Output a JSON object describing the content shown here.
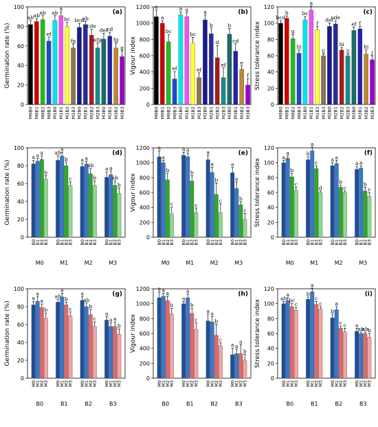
{
  "figure": {
    "colors": {
      "palette14": [
        "#000000",
        "#cc0000",
        "#66dd44",
        "#1f49cc",
        "#00e5ee",
        "#ee55ee",
        "#ffff33",
        "#8b7355",
        "#1a1a8c",
        "#7a1a1a",
        "#8c1a1a",
        "#1a7a7a",
        "#1a1acc",
        "#9900cc"
      ],
      "blue": [
        "#1f4e99",
        "#3a78c8",
        "#86b6e8",
        "#cfe2f7"
      ],
      "green": [
        "#0b7a0b",
        "#2ea82e",
        "#8fd88f",
        "#cfeecf"
      ],
      "red": [
        "#c23b3b",
        "#e06a6a",
        "#f2a5a5",
        "#fad3d3"
      ]
    }
  },
  "chart_data": [
    {
      "panel": "(a)",
      "type": "bar",
      "ylabel": "Germination rate (%)",
      "ylim": [
        0,
        100
      ],
      "yticks": [
        0,
        20,
        40,
        60,
        80,
        100
      ],
      "categories": [
        "M0B0",
        "M0B1",
        "M0B2",
        "M0B3",
        "M1B0",
        "M1B1",
        "M1B2",
        "M1B3",
        "M2B0",
        "M2B1",
        "M2B2",
        "M2B3",
        "M3B0",
        "M3B1",
        "M3B2",
        "M3B3"
      ],
      "values": [
        82,
        85,
        87,
        65,
        86,
        91,
        80,
        58,
        79,
        82,
        71,
        58,
        67,
        70,
        58,
        49
      ],
      "errors": [
        4,
        3,
        4,
        4,
        5,
        4,
        4,
        4,
        4,
        3,
        6,
        5,
        6,
        4,
        5,
        6
      ],
      "letters": [
        "ab",
        "ab",
        "ab",
        "ef",
        "ab",
        "a",
        "bc",
        "fg",
        "bcd",
        "ab",
        "cde",
        "efg",
        "def",
        "cd",
        "fg",
        "g"
      ],
      "color_scheme": "palette16"
    },
    {
      "panel": "(b)",
      "type": "bar",
      "ylabel": "Vigour index",
      "ylim": [
        0,
        1200
      ],
      "yticks": [
        0,
        200,
        400,
        600,
        800,
        1000,
        1200
      ],
      "categories": [
        "M0B0",
        "M0B1",
        "M0B2",
        "M0B3",
        "M1B0",
        "M1B1",
        "M1B2",
        "M1B3",
        "M2B0",
        "M2B1",
        "M2B2",
        "M2B3",
        "M3B0",
        "M3B1",
        "M3B2",
        "M3B3"
      ],
      "values": [
        1080,
        1000,
        770,
        315,
        1100,
        1080,
        755,
        330,
        1040,
        870,
        575,
        330,
        865,
        655,
        435,
        240
      ],
      "errors": [
        80,
        30,
        90,
        90,
        40,
        50,
        70,
        60,
        60,
        70,
        150,
        120,
        70,
        90,
        40,
        80
      ],
      "letters": [
        "a",
        "a",
        "bc",
        "ef",
        "a",
        "a",
        "bc",
        "ef",
        "a",
        "b",
        "d",
        "ef",
        "b",
        "cd",
        "e",
        "f"
      ],
      "color_scheme": "palette16"
    },
    {
      "panel": "(c)",
      "type": "bar",
      "ylabel": "Stress tolerance index",
      "ylim": [
        0,
        120
      ],
      "yticks": [
        0,
        20,
        40,
        60,
        80,
        100,
        120
      ],
      "categories": [
        "M0B0",
        "M0B1",
        "M0B2",
        "M0B3",
        "M1B0",
        "M1B1",
        "M1B2",
        "M1B3",
        "M2B0",
        "M2B1",
        "M2B2",
        "M2B3",
        "M3B0",
        "M3B1",
        "M3B2",
        "M3B3"
      ],
      "values": [
        100,
        106,
        81,
        63,
        104,
        116,
        92,
        60,
        96,
        99,
        67,
        60,
        91,
        93,
        62,
        55
      ],
      "errors": [
        3,
        3,
        5,
        4,
        4,
        5,
        4,
        2,
        4,
        4,
        3,
        2,
        4,
        3,
        5,
        5
      ],
      "letters": [
        "bcd",
        "b",
        "g",
        "hi",
        "bc",
        "a",
        "f",
        "ij",
        "def",
        "cde",
        "hi",
        "ij",
        "ef",
        "f",
        "hi",
        "j"
      ],
      "color_scheme": "palette16"
    },
    {
      "panel": "(d)",
      "type": "bar",
      "ylabel": "Germination rate (%)",
      "ylim": [
        0,
        100
      ],
      "yticks": [
        0,
        20,
        40,
        60,
        80,
        100
      ],
      "groups": [
        "M0",
        "M1",
        "M2",
        "M3"
      ],
      "bars": [
        "B0",
        "B1",
        "B2",
        "B3"
      ],
      "values": [
        [
          82,
          85,
          87,
          65
        ],
        [
          86,
          91,
          80,
          58
        ],
        [
          79,
          82,
          71,
          58
        ],
        [
          67,
          70,
          58,
          49
        ]
      ],
      "errors": [
        [
          4,
          3,
          4,
          4
        ],
        [
          5,
          4,
          4,
          4
        ],
        [
          4,
          3,
          6,
          5
        ],
        [
          6,
          4,
          5,
          6
        ]
      ],
      "letters": [
        [
          "a",
          "a",
          "a",
          "b"
        ],
        [
          "ab",
          "a",
          "b",
          "c"
        ],
        [
          "a",
          "a",
          "ab",
          "b"
        ],
        [
          "a",
          "a",
          "ab",
          "b"
        ]
      ],
      "color_scheme": "blue-green"
    },
    {
      "panel": "(e)",
      "type": "bar",
      "ylabel": "Vigour index",
      "ylim": [
        0,
        1200
      ],
      "yticks": [
        0,
        200,
        400,
        600,
        800,
        1000,
        1200
      ],
      "groups": [
        "M0",
        "M1",
        "M2",
        "M3"
      ],
      "bars": [
        "B0",
        "B1",
        "B2",
        "B3"
      ],
      "values": [
        [
          1080,
          1000,
          770,
          315
        ],
        [
          1100,
          1080,
          755,
          330
        ],
        [
          1040,
          870,
          575,
          330
        ],
        [
          865,
          655,
          435,
          240
        ]
      ],
      "errors": [
        [
          80,
          30,
          90,
          90
        ],
        [
          40,
          50,
          70,
          60
        ],
        [
          60,
          70,
          150,
          120
        ],
        [
          70,
          90,
          40,
          80
        ]
      ],
      "letters": [
        [
          "a",
          "a",
          "b",
          "c"
        ],
        [
          "a",
          "a",
          "b",
          "c"
        ],
        [
          "a",
          "a",
          "b",
          "c"
        ],
        [
          "a",
          "a",
          "b",
          "c"
        ]
      ],
      "color_scheme": "blue-green"
    },
    {
      "panel": "(f)",
      "type": "bar",
      "ylabel": "Stress tolerance index",
      "ylim": [
        0,
        120
      ],
      "yticks": [
        0,
        20,
        40,
        60,
        80,
        100,
        120
      ],
      "groups": [
        "M0",
        "M1",
        "M2",
        "M3"
      ],
      "bars": [
        "B0",
        "B1",
        "B2",
        "B3"
      ],
      "values": [
        [
          100,
          106,
          81,
          63
        ],
        [
          104,
          116,
          92,
          60
        ],
        [
          96,
          99,
          67,
          60
        ],
        [
          91,
          93,
          62,
          55
        ]
      ],
      "errors": [
        [
          3,
          3,
          5,
          4
        ],
        [
          4,
          5,
          4,
          2
        ],
        [
          4,
          4,
          3,
          2
        ],
        [
          4,
          3,
          5,
          5
        ]
      ],
      "letters": [
        [
          "a",
          "a",
          "b",
          "c"
        ],
        [
          "b",
          "a",
          "c",
          "d"
        ],
        [
          "a",
          "a",
          "b",
          "c"
        ],
        [
          "a",
          "a",
          "b",
          "c"
        ]
      ],
      "color_scheme": "blue-green"
    },
    {
      "panel": "(g)",
      "type": "bar",
      "ylabel": "Germination rate (%)",
      "ylim": [
        0,
        100
      ],
      "yticks": [
        0,
        20,
        40,
        60,
        80,
        100
      ],
      "groups": [
        "B0",
        "B1",
        "B2",
        "B3"
      ],
      "bars": [
        "M0",
        "M1",
        "M2",
        "M3"
      ],
      "values": [
        [
          82,
          86,
          79,
          67
        ],
        [
          85,
          91,
          82,
          70
        ],
        [
          87,
          80,
          71,
          58
        ],
        [
          65,
          58,
          58,
          49
        ]
      ],
      "errors": [
        [
          4,
          5,
          4,
          6
        ],
        [
          3,
          4,
          3,
          4
        ],
        [
          4,
          4,
          6,
          5
        ],
        [
          4,
          4,
          5,
          6
        ]
      ],
      "letters": [
        [
          "a",
          "a",
          "a",
          "b"
        ],
        [
          "ab",
          "a",
          "b",
          "c"
        ],
        [
          "a",
          "ab",
          "b",
          "c"
        ],
        [
          "a",
          "a",
          "a",
          "b"
        ]
      ],
      "color_scheme": "blue-red"
    },
    {
      "panel": "(h)",
      "type": "bar",
      "ylabel": "Vigour index",
      "ylim": [
        0,
        1200
      ],
      "yticks": [
        0,
        200,
        400,
        600,
        800,
        1000,
        1200
      ],
      "groups": [
        "B0",
        "B1",
        "B2",
        "B3"
      ],
      "bars": [
        "M0",
        "M1",
        "M2",
        "M3"
      ],
      "values": [
        [
          1080,
          1100,
          1040,
          865
        ],
        [
          1000,
          1080,
          870,
          655
        ],
        [
          770,
          755,
          575,
          435
        ],
        [
          315,
          330,
          330,
          240
        ]
      ],
      "errors": [
        [
          80,
          40,
          60,
          70
        ],
        [
          30,
          50,
          70,
          90
        ],
        [
          90,
          70,
          150,
          40
        ],
        [
          90,
          60,
          120,
          80
        ]
      ],
      "letters": [
        [
          "a",
          "a",
          "a",
          "b"
        ],
        [
          "a",
          "a",
          "b",
          "c"
        ],
        [
          "a",
          "a",
          "b",
          "c"
        ],
        [
          "a",
          "a",
          "a",
          "b"
        ]
      ],
      "color_scheme": "blue-red"
    },
    {
      "panel": "(i)",
      "type": "bar",
      "ylabel": "Stress tolerance index",
      "ylim": [
        0,
        120
      ],
      "yticks": [
        0,
        20,
        40,
        60,
        80,
        100,
        120
      ],
      "groups": [
        "B0",
        "B1",
        "B2",
        "B3"
      ],
      "bars": [
        "M0",
        "M1",
        "M2",
        "M3"
      ],
      "values": [
        [
          100,
          104,
          96,
          91
        ],
        [
          106,
          116,
          99,
          93
        ],
        [
          81,
          92,
          67,
          62
        ],
        [
          63,
          60,
          60,
          55
        ]
      ],
      "errors": [
        [
          3,
          4,
          4,
          4
        ],
        [
          3,
          5,
          4,
          3
        ],
        [
          5,
          4,
          3,
          5
        ],
        [
          4,
          2,
          2,
          5
        ]
      ],
      "letters": [
        [
          "ab",
          "a",
          "bc",
          "c"
        ],
        [
          "b",
          "a",
          "c",
          "c"
        ],
        [
          "b",
          "a",
          "c",
          "c"
        ],
        [
          "a",
          "ab",
          "ab",
          "b"
        ]
      ],
      "color_scheme": "blue-red"
    }
  ]
}
